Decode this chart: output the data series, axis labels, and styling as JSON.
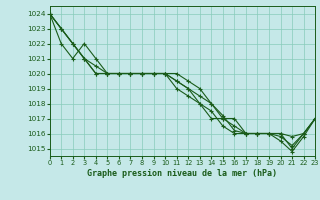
{
  "title": "Graphe pression niveau de la mer (hPa)",
  "bg_color": "#c5e8e8",
  "grid_color": "#88ccbb",
  "line_color": "#1a5c1a",
  "xlim": [
    0,
    23
  ],
  "ylim": [
    1014.5,
    1024.5
  ],
  "yticks": [
    1015,
    1016,
    1017,
    1018,
    1019,
    1020,
    1021,
    1022,
    1023,
    1024
  ],
  "xticks": [
    0,
    1,
    2,
    3,
    4,
    5,
    6,
    7,
    8,
    9,
    10,
    11,
    12,
    13,
    14,
    15,
    16,
    17,
    18,
    19,
    20,
    21,
    22,
    23
  ],
  "series": [
    [
      1024,
      1023,
      1022,
      1021,
      1020,
      1020,
      1020,
      1020,
      1020,
      1020,
      1020,
      1019.5,
      1019,
      1018,
      1017,
      1017,
      1017,
      1016,
      1016,
      1016,
      1016,
      1015,
      1016,
      1017
    ],
    [
      1024,
      1023,
      1022,
      1021,
      1020.5,
      1020,
      1020,
      1020,
      1020,
      1020,
      1020,
      1019.5,
      1019,
      1018.5,
      1018,
      1017.2,
      1016.2,
      1016,
      1016,
      1016,
      1015.8,
      1015.2,
      1016,
      1017
    ],
    [
      1024,
      1022,
      1021,
      1022,
      1021,
      1020,
      1020,
      1020,
      1020,
      1020,
      1020,
      1019,
      1018.5,
      1018,
      1017.5,
      1016.5,
      1016,
      1016,
      1016,
      1016,
      1015.5,
      1014.8,
      1015.8,
      1017
    ],
    [
      1024,
      1023,
      1022,
      1021,
      1020,
      1020,
      1020,
      1020,
      1020,
      1020,
      1020,
      1020,
      1019.5,
      1019,
      1018,
      1017,
      1016.5,
      1016,
      1016,
      1016,
      1016,
      1015.8,
      1016,
      1017
    ]
  ]
}
